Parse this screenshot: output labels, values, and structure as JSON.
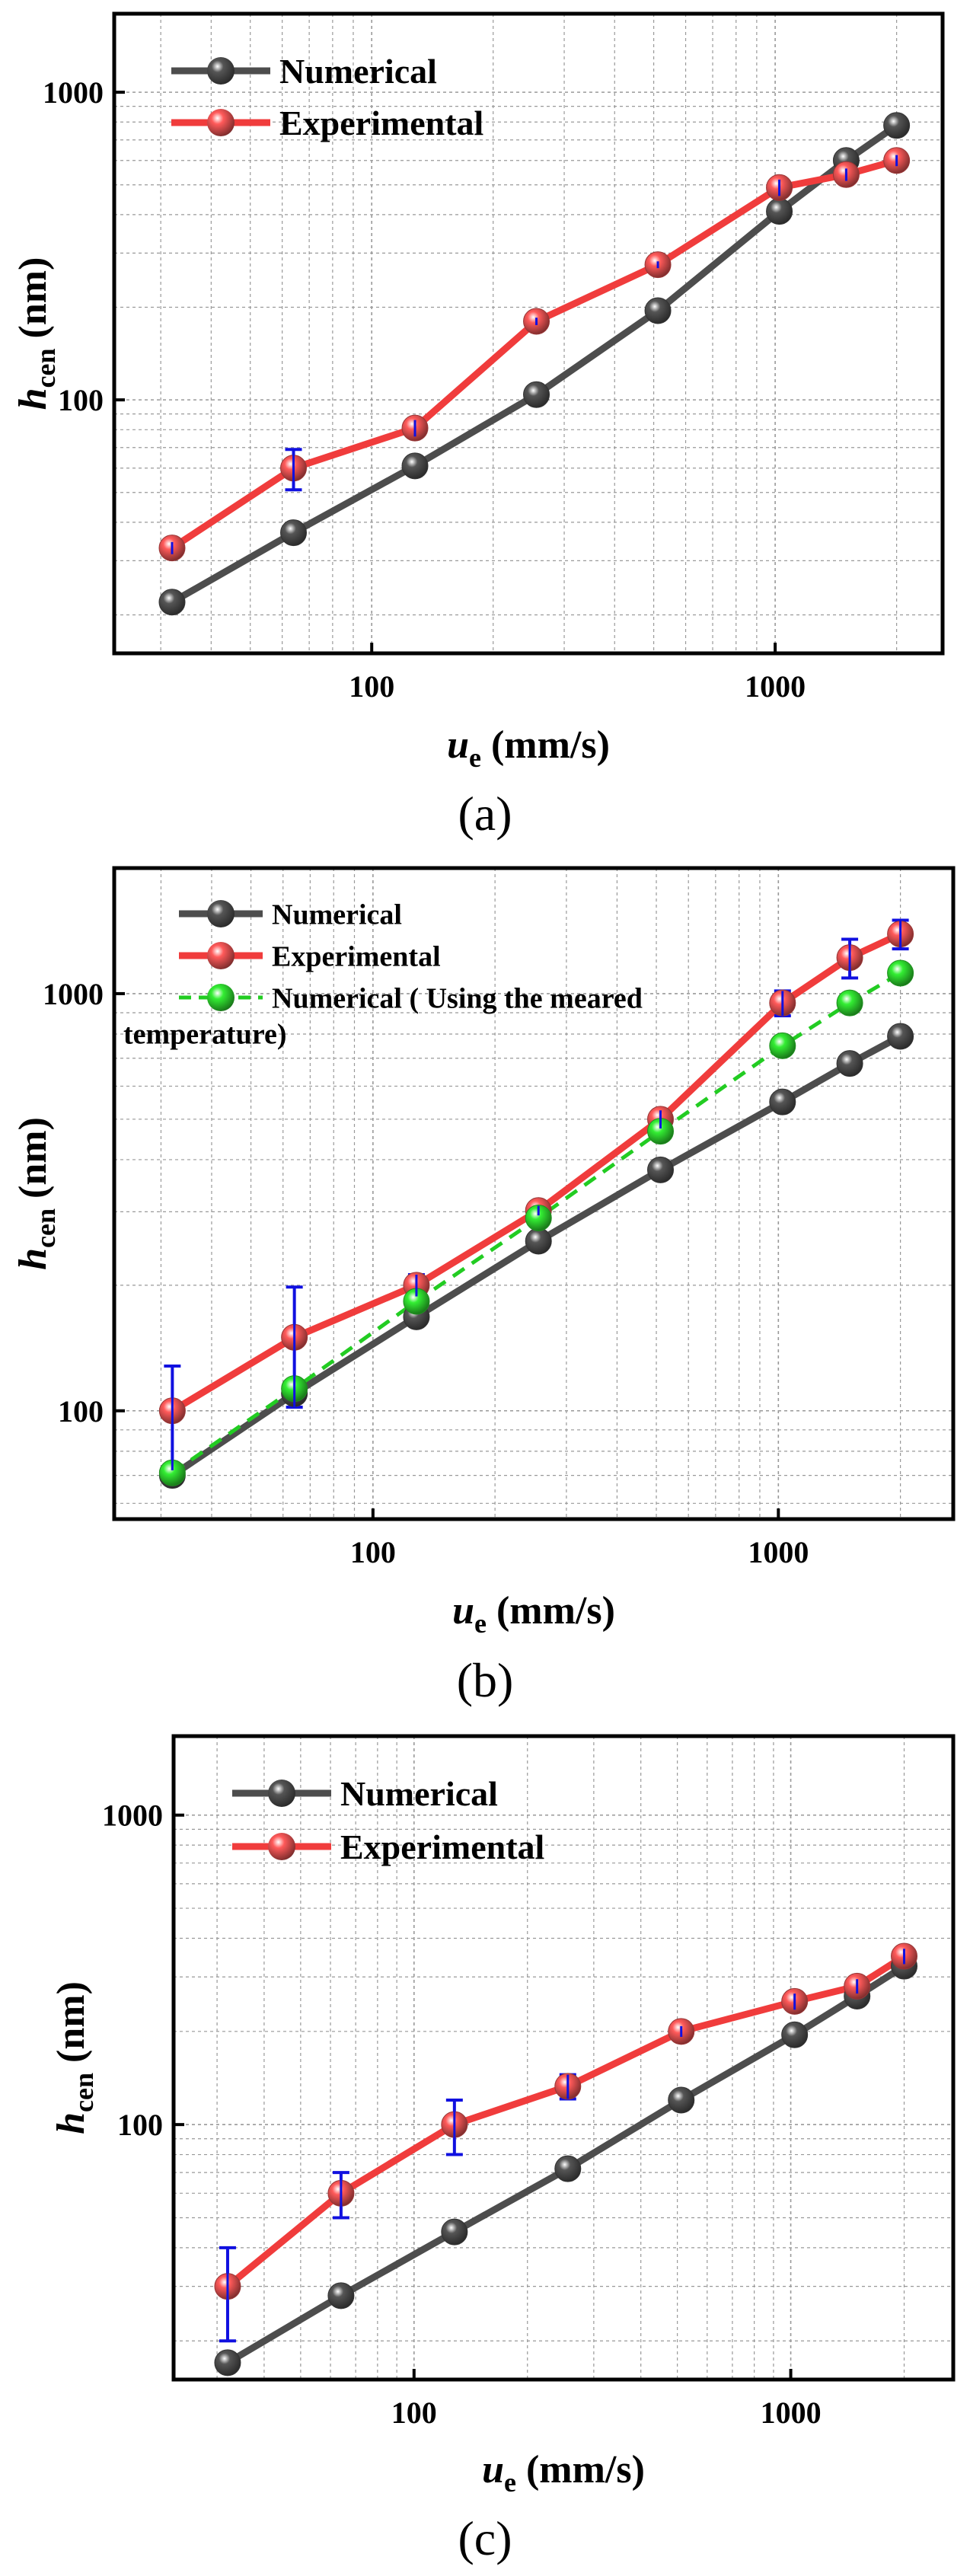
{
  "chart_data": [
    {
      "type": "line",
      "panel_label": "(a)",
      "xscale": "log",
      "yscale": "log",
      "xlim": [
        23,
        2600
      ],
      "ylim": [
        15,
        1800
      ],
      "xticks": [
        100,
        1000
      ],
      "xtick_labels": [
        "100",
        "1000"
      ],
      "yticks": [
        100,
        1000
      ],
      "ytick_labels": [
        "100",
        "1000"
      ],
      "xlabel": {
        "var": "u",
        "sub": "e",
        "unit": " (mm/s)"
      },
      "ylabel": {
        "var": "h",
        "sub": "cen",
        "unit": " (nm)"
      },
      "grid": true,
      "legend_position": "top-left",
      "series": [
        {
          "name": "Numerical",
          "color": "#4d4d4d",
          "marker_color": "#555555",
          "dashed": false,
          "x": [
            32,
            64,
            128,
            256,
            512,
            1024,
            1500,
            2000
          ],
          "y": [
            22,
            37,
            61,
            104,
            195,
            410,
            600,
            780
          ]
        },
        {
          "name": "Experimental",
          "color": "#f03c3c",
          "marker_color": "#ff5a5a",
          "dashed": false,
          "x": [
            32,
            64,
            128,
            256,
            512,
            1024,
            1500,
            2000
          ],
          "y": [
            33,
            60,
            81,
            180,
            275,
            490,
            540,
            600
          ],
          "error": [
            1.5,
            9,
            5,
            5,
            7,
            30,
            25,
            25
          ]
        }
      ]
    },
    {
      "type": "line",
      "panel_label": "(b)",
      "xscale": "log",
      "yscale": "log",
      "xlim": [
        23,
        2700
      ],
      "ylim": [
        55,
        2000
      ],
      "xticks": [
        100,
        1000
      ],
      "xtick_labels": [
        "100",
        "1000"
      ],
      "yticks": [
        100,
        1000
      ],
      "ytick_labels": [
        "100",
        "1000"
      ],
      "xlabel": {
        "var": "u",
        "sub": "e",
        "unit": " (mm/s)"
      },
      "ylabel": {
        "var": "h",
        "sub": "cen",
        "unit": " (nm)"
      },
      "grid": true,
      "legend_position": "top-left",
      "legend_third_line": "temperature)",
      "series": [
        {
          "name": "Numerical",
          "color": "#4d4d4d",
          "marker_color": "#555555",
          "dashed": false,
          "x": [
            32,
            64,
            128,
            256,
            512,
            1024,
            1500,
            2000
          ],
          "y": [
            70,
            110,
            168,
            255,
            378,
            550,
            680,
            790
          ]
        },
        {
          "name": "Experimental",
          "color": "#f03c3c",
          "marker_color": "#ff5a5a",
          "dashed": false,
          "x": [
            32,
            64,
            128,
            256,
            512,
            1024,
            1500,
            2000
          ],
          "y": [
            100,
            150,
            200,
            302,
            500,
            950,
            1220,
            1390
          ],
          "error": [
            28,
            48,
            12,
            8,
            25,
            65,
            130,
            110
          ]
        },
        {
          "name": "Numerical ( Using the meared",
          "color": "#22cc22",
          "marker_color": "#33ee33",
          "dashed": true,
          "x": [
            32,
            64,
            128,
            256,
            512,
            1024,
            1500,
            2000
          ],
          "y": [
            71,
            113,
            183,
            290,
            468,
            750,
            950,
            1120
          ]
        }
      ]
    },
    {
      "type": "line",
      "panel_label": "(c)",
      "xscale": "log",
      "yscale": "log",
      "xlim": [
        23,
        2700
      ],
      "ylim": [
        15,
        1800
      ],
      "xticks": [
        100,
        1000
      ],
      "xtick_labels": [
        "100",
        "1000"
      ],
      "yticks": [
        100,
        1000
      ],
      "ytick_labels": [
        "100",
        "1000"
      ],
      "xlabel": {
        "var": "u",
        "sub": "e",
        "unit": " (mm/s)"
      },
      "ylabel": {
        "var": "h",
        "sub": "cen",
        "unit": " (nm)"
      },
      "grid": true,
      "legend_position": "top-left",
      "series": [
        {
          "name": "Numerical",
          "color": "#4d4d4d",
          "marker_color": "#555555",
          "dashed": false,
          "x": [
            32,
            64,
            128,
            256,
            512,
            1024,
            1500,
            2000
          ],
          "y": [
            17,
            28,
            45,
            72,
            120,
            195,
            260,
            325
          ]
        },
        {
          "name": "Experimental",
          "color": "#f03c3c",
          "marker_color": "#ff5a5a",
          "dashed": false,
          "x": [
            32,
            64,
            128,
            256,
            512,
            1024,
            1500,
            2000
          ],
          "y": [
            30,
            60,
            100,
            133,
            200,
            250,
            280,
            350
          ],
          "error": [
            10,
            10,
            20,
            12,
            8,
            15,
            15,
            20
          ]
        }
      ]
    }
  ]
}
